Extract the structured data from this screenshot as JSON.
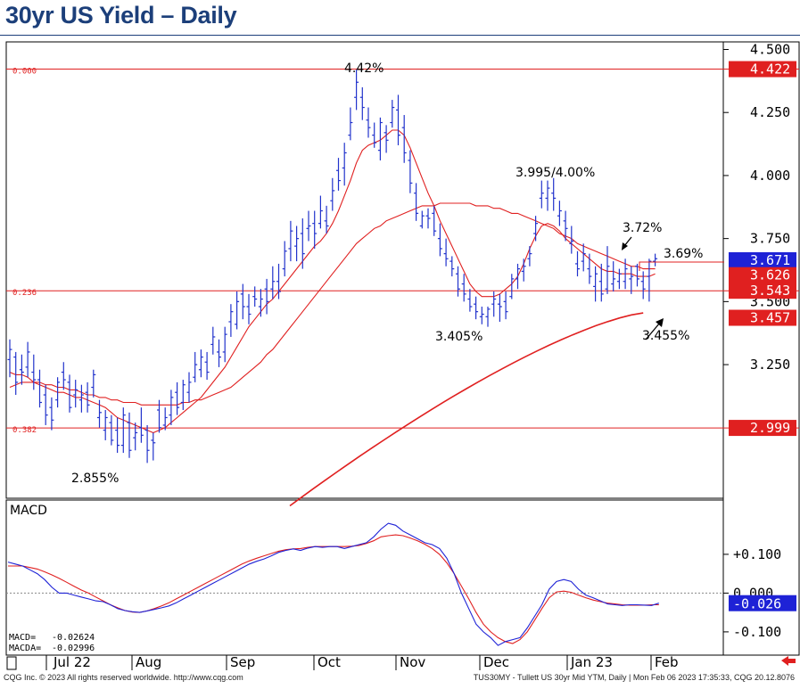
{
  "page": {
    "title": "30yr US Yield – Daily",
    "footer_left": "CQG Inc. © 2023 All rights reserved worldwide. http://www.cqg.com",
    "footer_right": "TUS30MY - Tullett US 30yr Mid YTM, Daily | Mon Feb 06 2023 17:35:33, CQG 20.12.8076",
    "back_arrow": "left-arrow-icon"
  },
  "colors": {
    "bars": "#2233cc",
    "ma": "#e02020",
    "fib": "#e02020",
    "last_price": "#1e22d6",
    "macda_label": "#e02020",
    "macd_label": "#1e22d6",
    "title": "#1c3f7a"
  },
  "chart_data": [
    {
      "type": "ohlc",
      "ylim": [
        2.72,
        4.53
      ],
      "y_ticks": [
        "4.500",
        "4.250",
        "4.000",
        "3.750",
        "3.500",
        "3.250"
      ],
      "x_ticks": [
        "Jul 22",
        "Aug",
        "Sep",
        "Oct",
        "Nov",
        "Dec",
        "Jan 23",
        "Feb"
      ],
      "bars": [
        [
          3.27,
          3.35,
          3.2,
          3.31
        ],
        [
          3.28,
          3.3,
          3.13,
          3.18
        ],
        [
          3.23,
          3.29,
          3.17,
          3.22
        ],
        [
          3.24,
          3.34,
          3.2,
          3.3
        ],
        [
          3.22,
          3.29,
          3.15,
          3.19
        ],
        [
          3.19,
          3.23,
          3.08,
          3.1
        ],
        [
          3.13,
          3.17,
          3.01,
          3.05
        ],
        [
          3.08,
          3.12,
          2.99,
          3.03
        ],
        [
          3.11,
          3.2,
          3.08,
          3.18
        ],
        [
          3.22,
          3.26,
          3.15,
          3.19
        ],
        [
          3.18,
          3.21,
          3.06,
          3.08
        ],
        [
          3.13,
          3.19,
          3.08,
          3.15
        ],
        [
          3.11,
          3.17,
          3.06,
          3.13
        ],
        [
          3.14,
          3.18,
          3.06,
          3.09
        ],
        [
          3.16,
          3.23,
          3.12,
          3.21
        ],
        [
          3.04,
          3.11,
          3.0,
          3.06
        ],
        [
          2.99,
          3.07,
          2.95,
          3.04
        ],
        [
          3.02,
          3.05,
          2.93,
          2.95
        ],
        [
          2.99,
          3.04,
          2.9,
          2.93
        ],
        [
          2.93,
          3.08,
          2.9,
          3.05
        ],
        [
          3.02,
          3.06,
          2.88,
          2.91
        ],
        [
          2.96,
          3.02,
          2.91,
          2.98
        ],
        [
          3.0,
          3.08,
          2.94,
          2.97
        ],
        [
          2.99,
          3.01,
          2.86,
          2.91
        ],
        [
          2.95,
          2.98,
          2.87,
          2.94
        ],
        [
          3.07,
          3.11,
          2.98,
          3.0
        ],
        [
          3.01,
          3.08,
          2.99,
          3.04
        ],
        [
          3.05,
          3.15,
          3.01,
          3.12
        ],
        [
          3.14,
          3.18,
          3.05,
          3.08
        ],
        [
          3.1,
          3.19,
          3.07,
          3.17
        ],
        [
          3.14,
          3.22,
          3.1,
          3.18
        ],
        [
          3.2,
          3.3,
          3.18,
          3.25
        ],
        [
          3.23,
          3.31,
          3.2,
          3.28
        ],
        [
          3.26,
          3.3,
          3.19,
          3.22
        ],
        [
          3.33,
          3.4,
          3.29,
          3.36
        ],
        [
          3.3,
          3.35,
          3.24,
          3.28
        ],
        [
          3.3,
          3.4,
          3.26,
          3.37
        ],
        [
          3.42,
          3.49,
          3.36,
          3.46
        ],
        [
          3.41,
          3.54,
          3.39,
          3.5
        ],
        [
          3.53,
          3.57,
          3.43,
          3.48
        ],
        [
          3.48,
          3.53,
          3.41,
          3.45
        ],
        [
          3.52,
          3.56,
          3.48,
          3.51
        ],
        [
          3.48,
          3.55,
          3.44,
          3.51
        ],
        [
          3.55,
          3.59,
          3.45,
          3.5
        ],
        [
          3.55,
          3.64,
          3.51,
          3.58
        ],
        [
          3.58,
          3.65,
          3.51,
          3.54
        ],
        [
          3.63,
          3.74,
          3.6,
          3.7
        ],
        [
          3.71,
          3.82,
          3.66,
          3.78
        ],
        [
          3.72,
          3.8,
          3.66,
          3.75
        ],
        [
          3.77,
          3.83,
          3.63,
          3.69
        ],
        [
          3.79,
          3.86,
          3.74,
          3.8
        ],
        [
          3.81,
          3.86,
          3.71,
          3.77
        ],
        [
          3.81,
          3.92,
          3.79,
          3.86
        ],
        [
          3.82,
          3.88,
          3.77,
          3.8
        ],
        [
          3.9,
          3.99,
          3.86,
          3.94
        ],
        [
          4.02,
          4.07,
          3.94,
          3.98
        ],
        [
          4.03,
          4.13,
          3.96,
          4.09
        ],
        [
          4.16,
          4.27,
          4.14,
          4.21
        ],
        [
          4.31,
          4.42,
          4.26,
          4.37
        ],
        [
          4.31,
          4.35,
          4.22,
          4.27
        ],
        [
          4.22,
          4.27,
          4.15,
          4.19
        ],
        [
          4.16,
          4.21,
          4.11,
          4.13
        ],
        [
          4.1,
          4.23,
          4.06,
          4.21
        ],
        [
          4.17,
          4.2,
          4.09,
          4.14
        ],
        [
          4.21,
          4.3,
          4.19,
          4.27
        ],
        [
          4.26,
          4.32,
          4.12,
          4.16
        ],
        [
          4.19,
          4.24,
          4.05,
          4.09
        ],
        [
          4.06,
          4.1,
          3.93,
          3.97
        ],
        [
          3.93,
          3.97,
          3.82,
          3.85
        ],
        [
          3.8,
          3.86,
          3.79,
          3.84
        ],
        [
          3.84,
          3.87,
          3.79,
          3.83
        ],
        [
          3.85,
          3.88,
          3.76,
          3.78
        ],
        [
          3.75,
          3.81,
          3.68,
          3.71
        ],
        [
          3.69,
          3.75,
          3.64,
          3.67
        ],
        [
          3.66,
          3.68,
          3.6,
          3.63
        ],
        [
          3.61,
          3.64,
          3.52,
          3.55
        ],
        [
          3.57,
          3.61,
          3.5,
          3.53
        ],
        [
          3.51,
          3.55,
          3.46,
          3.48
        ],
        [
          3.49,
          3.52,
          3.43,
          3.46
        ],
        [
          3.44,
          3.48,
          3.41,
          3.45
        ],
        [
          3.44,
          3.48,
          3.4,
          3.47
        ],
        [
          3.49,
          3.54,
          3.44,
          3.51
        ],
        [
          3.49,
          3.53,
          3.42,
          3.48
        ],
        [
          3.5,
          3.54,
          3.43,
          3.46
        ],
        [
          3.52,
          3.61,
          3.51,
          3.59
        ],
        [
          3.59,
          3.65,
          3.55,
          3.63
        ],
        [
          3.62,
          3.67,
          3.58,
          3.64
        ],
        [
          3.67,
          3.72,
          3.64,
          3.69
        ],
        [
          3.77,
          3.84,
          3.74,
          3.81
        ],
        [
          3.91,
          3.98,
          3.87,
          3.93
        ],
        [
          3.91,
          3.98,
          3.86,
          3.95
        ],
        [
          3.93,
          3.99,
          3.86,
          3.91
        ],
        [
          3.84,
          3.9,
          3.8,
          3.86
        ],
        [
          3.82,
          3.86,
          3.74,
          3.79
        ],
        [
          3.73,
          3.8,
          3.69,
          3.74
        ],
        [
          3.65,
          3.7,
          3.6,
          3.63
        ],
        [
          3.66,
          3.73,
          3.62,
          3.69
        ],
        [
          3.63,
          3.69,
          3.57,
          3.6
        ],
        [
          3.56,
          3.64,
          3.5,
          3.61
        ],
        [
          3.58,
          3.65,
          3.5,
          3.53
        ],
        [
          3.55,
          3.72,
          3.53,
          3.64
        ],
        [
          3.57,
          3.66,
          3.54,
          3.59
        ],
        [
          3.58,
          3.63,
          3.55,
          3.61
        ],
        [
          3.58,
          3.67,
          3.55,
          3.63
        ],
        [
          3.59,
          3.64,
          3.53,
          3.6
        ],
        [
          3.64,
          3.65,
          3.56,
          3.59
        ],
        [
          3.58,
          3.62,
          3.51,
          3.55
        ],
        [
          3.6,
          3.67,
          3.5,
          3.66
        ],
        [
          3.66,
          3.69,
          3.64,
          3.67
        ]
      ],
      "sma_fast": [
        3.22,
        3.21,
        3.21,
        3.2,
        3.18,
        3.17,
        3.16,
        3.15,
        3.14,
        3.14,
        3.13,
        3.12,
        3.12,
        3.11,
        3.1,
        3.09,
        3.08,
        3.06,
        3.04,
        3.03,
        3.02,
        3.01,
        3.0,
        2.99,
        2.98,
        2.99,
        3.0,
        3.02,
        3.04,
        3.06,
        3.08,
        3.1,
        3.12,
        3.15,
        3.18,
        3.21,
        3.24,
        3.28,
        3.32,
        3.36,
        3.4,
        3.43,
        3.46,
        3.49,
        3.51,
        3.54,
        3.57,
        3.6,
        3.63,
        3.66,
        3.69,
        3.72,
        3.74,
        3.77,
        3.81,
        3.86,
        3.92,
        3.98,
        4.05,
        4.1,
        4.12,
        4.13,
        4.14,
        4.16,
        4.18,
        4.18,
        4.16,
        4.11,
        4.05,
        3.99,
        3.93,
        3.88,
        3.82,
        3.77,
        3.72,
        3.67,
        3.62,
        3.57,
        3.54,
        3.52,
        3.52,
        3.52,
        3.53,
        3.55,
        3.57,
        3.6,
        3.65,
        3.71,
        3.76,
        3.8,
        3.81,
        3.8,
        3.78,
        3.75,
        3.73,
        3.71,
        3.69,
        3.67,
        3.65,
        3.63,
        3.62,
        3.62,
        3.61,
        3.61,
        3.61,
        3.6,
        3.6,
        3.6,
        3.61
      ],
      "sma_mid": [
        3.16,
        3.17,
        3.18,
        3.18,
        3.18,
        3.18,
        3.17,
        3.17,
        3.16,
        3.16,
        3.15,
        3.15,
        3.14,
        3.13,
        3.13,
        3.12,
        3.12,
        3.11,
        3.11,
        3.1,
        3.1,
        3.1,
        3.09,
        3.09,
        3.09,
        3.09,
        3.09,
        3.09,
        3.09,
        3.1,
        3.1,
        3.11,
        3.11,
        3.12,
        3.13,
        3.14,
        3.15,
        3.16,
        3.18,
        3.2,
        3.22,
        3.24,
        3.26,
        3.29,
        3.31,
        3.34,
        3.37,
        3.4,
        3.43,
        3.46,
        3.49,
        3.52,
        3.55,
        3.58,
        3.61,
        3.64,
        3.67,
        3.7,
        3.73,
        3.75,
        3.77,
        3.79,
        3.8,
        3.82,
        3.83,
        3.84,
        3.85,
        3.86,
        3.87,
        3.88,
        3.88,
        3.88,
        3.89,
        3.89,
        3.89,
        3.89,
        3.89,
        3.89,
        3.88,
        3.88,
        3.88,
        3.87,
        3.87,
        3.86,
        3.85,
        3.85,
        3.84,
        3.83,
        3.82,
        3.81,
        3.8,
        3.79,
        3.77,
        3.76,
        3.75,
        3.73,
        3.72,
        3.71,
        3.7,
        3.69,
        3.68,
        3.67,
        3.66,
        3.65,
        3.64,
        3.64,
        3.63,
        3.63,
        3.63
      ],
      "sma_slow_start": 2.69,
      "sma_slow_end": 3.455,
      "fib_levels": [
        {
          "label": "0.000",
          "value": 4.422,
          "tag": "4.422"
        },
        {
          "label": "0.236",
          "value": 3.543,
          "tag": "3.543"
        },
        {
          "label": "0.382",
          "value": 2.999,
          "tag": "2.999"
        }
      ],
      "price_tags": [
        {
          "value": 3.671,
          "text": "3.671",
          "kind": "last"
        },
        {
          "value": 3.626,
          "text": "3.626",
          "kind": "ma"
        },
        {
          "value": 3.457,
          "text": "3.457",
          "kind": "ma"
        }
      ],
      "annotations": [
        "4.42%",
        "3.995/4.00%",
        "3.72%",
        "3.69%",
        "3.405%",
        "3.455%",
        "2.855%"
      ]
    },
    {
      "type": "line",
      "title": "MACD",
      "ylim": [
        -0.16,
        0.24
      ],
      "y_ticks": [
        "+0.100",
        "0.000",
        "-0.100"
      ],
      "series": [
        {
          "name": "MACD",
          "values": [
            0.08,
            0.075,
            0.07,
            0.06,
            0.05,
            0.035,
            0.015,
            0.0,
            0.0,
            -0.005,
            -0.01,
            -0.015,
            -0.02,
            -0.022,
            -0.03,
            -0.04,
            -0.045,
            -0.048,
            -0.05,
            -0.046,
            -0.042,
            -0.038,
            -0.033,
            -0.025,
            -0.015,
            -0.005,
            0.005,
            0.015,
            0.025,
            0.035,
            0.045,
            0.055,
            0.065,
            0.075,
            0.082,
            0.088,
            0.096,
            0.105,
            0.11,
            0.114,
            0.11,
            0.116,
            0.12,
            0.118,
            0.12,
            0.12,
            0.115,
            0.12,
            0.125,
            0.13,
            0.145,
            0.165,
            0.18,
            0.175,
            0.16,
            0.15,
            0.14,
            0.13,
            0.125,
            0.115,
            0.09,
            0.05,
            0.0,
            -0.04,
            -0.08,
            -0.1,
            -0.115,
            -0.135,
            -0.125,
            -0.12,
            -0.115,
            -0.09,
            -0.06,
            -0.03,
            0.01,
            0.03,
            0.035,
            0.03,
            0.01,
            -0.005,
            -0.012,
            -0.02,
            -0.028,
            -0.03,
            -0.032,
            -0.03,
            -0.03,
            -0.031,
            -0.032,
            -0.026
          ]
        },
        {
          "name": "MACDA",
          "values": [
            0.07,
            0.07,
            0.07,
            0.066,
            0.062,
            0.055,
            0.047,
            0.038,
            0.028,
            0.018,
            0.008,
            0.0,
            -0.01,
            -0.02,
            -0.03,
            -0.038,
            -0.045,
            -0.049,
            -0.05,
            -0.046,
            -0.04,
            -0.033,
            -0.025,
            -0.015,
            -0.005,
            0.005,
            0.015,
            0.025,
            0.035,
            0.045,
            0.055,
            0.065,
            0.075,
            0.083,
            0.09,
            0.096,
            0.102,
            0.108,
            0.112,
            0.114,
            0.115,
            0.118,
            0.12,
            0.12,
            0.12,
            0.12,
            0.12,
            0.121,
            0.123,
            0.128,
            0.135,
            0.145,
            0.148,
            0.15,
            0.148,
            0.142,
            0.135,
            0.126,
            0.115,
            0.1,
            0.078,
            0.05,
            0.018,
            -0.015,
            -0.05,
            -0.08,
            -0.1,
            -0.115,
            -0.125,
            -0.13,
            -0.12,
            -0.1,
            -0.07,
            -0.04,
            -0.012,
            0.003,
            0.005,
            0.002,
            -0.005,
            -0.012,
            -0.018,
            -0.022,
            -0.026,
            -0.028,
            -0.03,
            -0.031,
            -0.031,
            -0.031,
            -0.03,
            -0.03
          ]
        }
      ],
      "readout": [
        {
          "label": "MACD=",
          "value": "-0.02624"
        },
        {
          "label": "MACDA=",
          "value": "-0.02996"
        }
      ],
      "last_tag": "-0.026"
    }
  ]
}
